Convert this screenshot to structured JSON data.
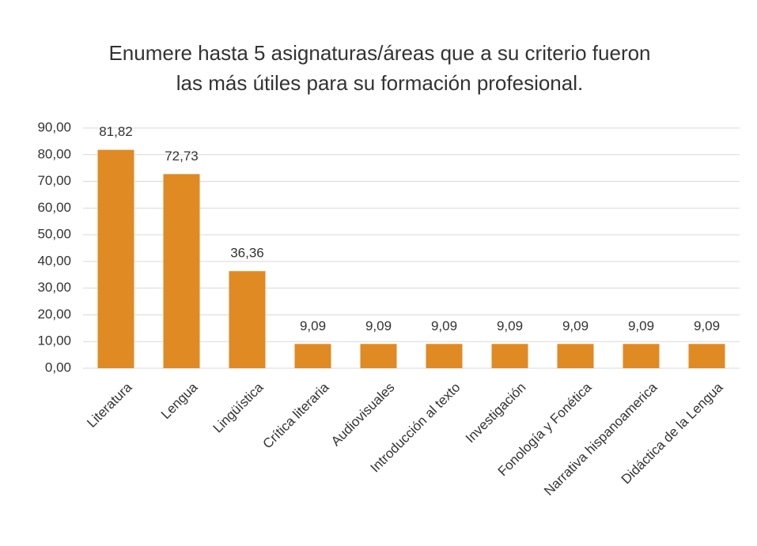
{
  "chart_data": {
    "type": "bar",
    "title": "Enumere hasta 5 asignaturas/áreas que a su criterio fueron las  más útiles para su formación  profesional.",
    "categories": [
      "Literatura",
      "Lengua",
      "Lingüística",
      "Crítica literaria",
      "Audiovisuales",
      "Introducción al texto",
      "Investigación",
      "Fonología y Fonética",
      "Narrativa hispanoamerica",
      "Didáctica de la Lengua"
    ],
    "values": [
      81.82,
      72.73,
      36.36,
      9.09,
      9.09,
      9.09,
      9.09,
      9.09,
      9.09,
      9.09
    ],
    "value_labels": [
      "81,82",
      "72,73",
      "36,36",
      "9,09",
      "9,09",
      "9,09",
      "9,09",
      "9,09",
      "9,09",
      "9,09"
    ],
    "color": "#e08a24",
    "ylim": [
      0,
      90
    ],
    "yticks": [
      {
        "value": 0,
        "label": "0,00"
      },
      {
        "value": 10,
        "label": "10,00"
      },
      {
        "value": 20,
        "label": "20,00"
      },
      {
        "value": 30,
        "label": "30,00"
      },
      {
        "value": 40,
        "label": "40,00"
      },
      {
        "value": 50,
        "label": "50,00"
      },
      {
        "value": 60,
        "label": "60,00"
      },
      {
        "value": 70,
        "label": "70,00"
      },
      {
        "value": 80,
        "label": "80,00"
      },
      {
        "value": 90,
        "label": "90,00"
      }
    ],
    "grid": true
  }
}
